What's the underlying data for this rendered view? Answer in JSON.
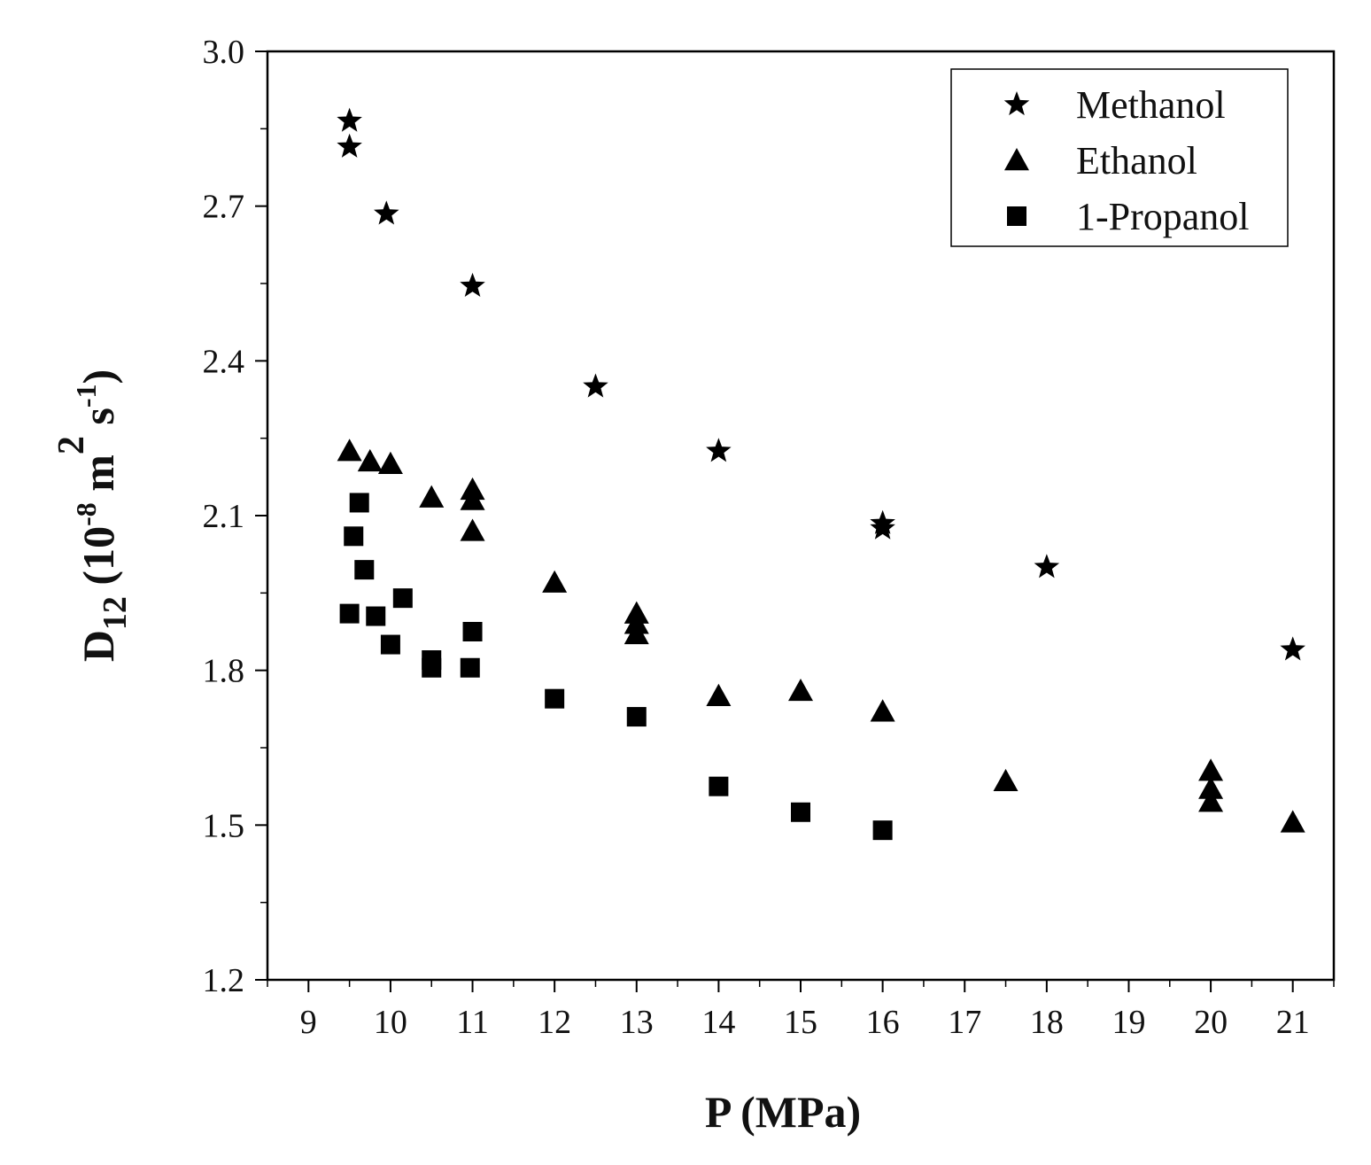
{
  "chart_data": {
    "type": "scatter",
    "title": "",
    "xlabel": "P (MPa)",
    "ylabel": {
      "main": "D",
      "sub": "12",
      "open": " (10",
      "exp1": "-8",
      "unit_m": " m",
      "exp2": "2",
      "unit_s": " s",
      "exp3": "-1",
      "close": ")"
    },
    "xlim": [
      8.5,
      21.5
    ],
    "ylim": [
      1.2,
      3.0
    ],
    "x_ticks": [
      9,
      10,
      11,
      12,
      13,
      14,
      15,
      16,
      17,
      18,
      19,
      20,
      21
    ],
    "x_tick_labels": [
      "9",
      "10",
      "11",
      "12",
      "13",
      "14",
      "15",
      "16",
      "17",
      "18",
      "19",
      "20",
      "21"
    ],
    "y_ticks": [
      1.2,
      1.5,
      1.8,
      2.1,
      2.4,
      2.7,
      3.0
    ],
    "y_tick_labels": [
      "1.2",
      "1.5",
      "1.8",
      "2.1",
      "2.4",
      "2.7",
      "3.0"
    ],
    "grid": false,
    "legend_position": "top-right",
    "series": [
      {
        "name": "Methanol",
        "marker": "star",
        "color": "#000000",
        "points": [
          [
            9.5,
            2.865
          ],
          [
            9.5,
            2.815
          ],
          [
            9.95,
            2.685
          ],
          [
            11.0,
            2.545
          ],
          [
            12.5,
            2.35
          ],
          [
            14.0,
            2.225
          ],
          [
            16.0,
            2.085
          ],
          [
            16.0,
            2.075
          ],
          [
            18.0,
            2.0
          ],
          [
            21.0,
            1.84
          ]
        ]
      },
      {
        "name": "Ethanol",
        "marker": "triangle",
        "color": "#000000",
        "points": [
          [
            9.5,
            2.225
          ],
          [
            9.75,
            2.205
          ],
          [
            10.0,
            2.2
          ],
          [
            10.5,
            2.135
          ],
          [
            11.0,
            2.15
          ],
          [
            11.0,
            2.13
          ],
          [
            11.0,
            2.07
          ],
          [
            12.0,
            1.97
          ],
          [
            13.0,
            1.91
          ],
          [
            13.0,
            1.89
          ],
          [
            13.0,
            1.87
          ],
          [
            14.0,
            1.75
          ],
          [
            15.0,
            1.76
          ],
          [
            16.0,
            1.72
          ],
          [
            17.5,
            1.585
          ],
          [
            20.0,
            1.605
          ],
          [
            20.0,
            1.57
          ],
          [
            20.0,
            1.545
          ],
          [
            21.0,
            1.505
          ]
        ]
      },
      {
        "name": "1-Propanol",
        "marker": "square",
        "color": "#000000",
        "points": [
          [
            9.62,
            2.125
          ],
          [
            9.55,
            2.06
          ],
          [
            9.68,
            1.995
          ],
          [
            9.5,
            1.91
          ],
          [
            9.82,
            1.905
          ],
          [
            10.15,
            1.94
          ],
          [
            10.0,
            1.85
          ],
          [
            10.5,
            1.82
          ],
          [
            10.5,
            1.805
          ],
          [
            11.0,
            1.875
          ],
          [
            10.97,
            1.805
          ],
          [
            12.0,
            1.745
          ],
          [
            13.0,
            1.71
          ],
          [
            14.0,
            1.575
          ],
          [
            15.0,
            1.525
          ],
          [
            16.0,
            1.49
          ]
        ]
      }
    ]
  }
}
